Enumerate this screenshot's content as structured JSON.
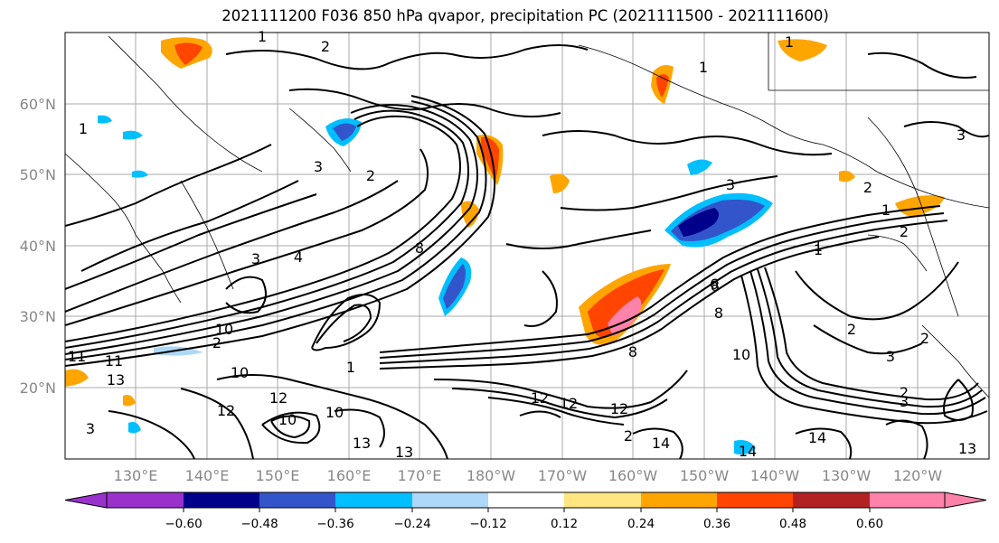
{
  "title": "2021111200 F036 850 hPa qvapor, precipitation PC (2021111500 - 2021111600)",
  "lat_labels": [
    "60°N",
    "50°N",
    "40°N",
    "30°N",
    "20°N"
  ],
  "lon_labels": [
    "130°E",
    "140°E",
    "150°E",
    "160°E",
    "170°E",
    "180°W",
    "170°W",
    "160°W",
    "150°W",
    "140°W",
    "130°W",
    "120°W"
  ],
  "colorbar": {
    "ticks": [
      "−0.60",
      "−0.48",
      "−0.36",
      "−0.24",
      "−0.12",
      "0.12",
      "0.24",
      "0.36",
      "0.48",
      "0.60"
    ],
    "colors": [
      "#9932CC",
      "#00008B",
      "#3355CC",
      "#00BFFF",
      "#ADD8F8",
      "#FFFFFF",
      "#FFE680",
      "#FFA500",
      "#FF4500",
      "#B22222",
      "#FF82AB"
    ]
  },
  "contour_labels": [
    "1",
    "2",
    "1",
    "1",
    "1",
    "3",
    "2",
    "3",
    "2",
    "3",
    "4",
    "3",
    "2",
    "1",
    "2",
    "3",
    "10",
    "11",
    "13",
    "10",
    "12",
    "12",
    "10",
    "13",
    "13",
    "8",
    "12",
    "12",
    "8",
    "14",
    "14",
    "14",
    "8",
    "8",
    "1",
    "2",
    "3",
    "2",
    "13",
    "2",
    "3",
    "1",
    "10",
    "6",
    "1",
    "2",
    "12",
    "11",
    "10"
  ]
}
